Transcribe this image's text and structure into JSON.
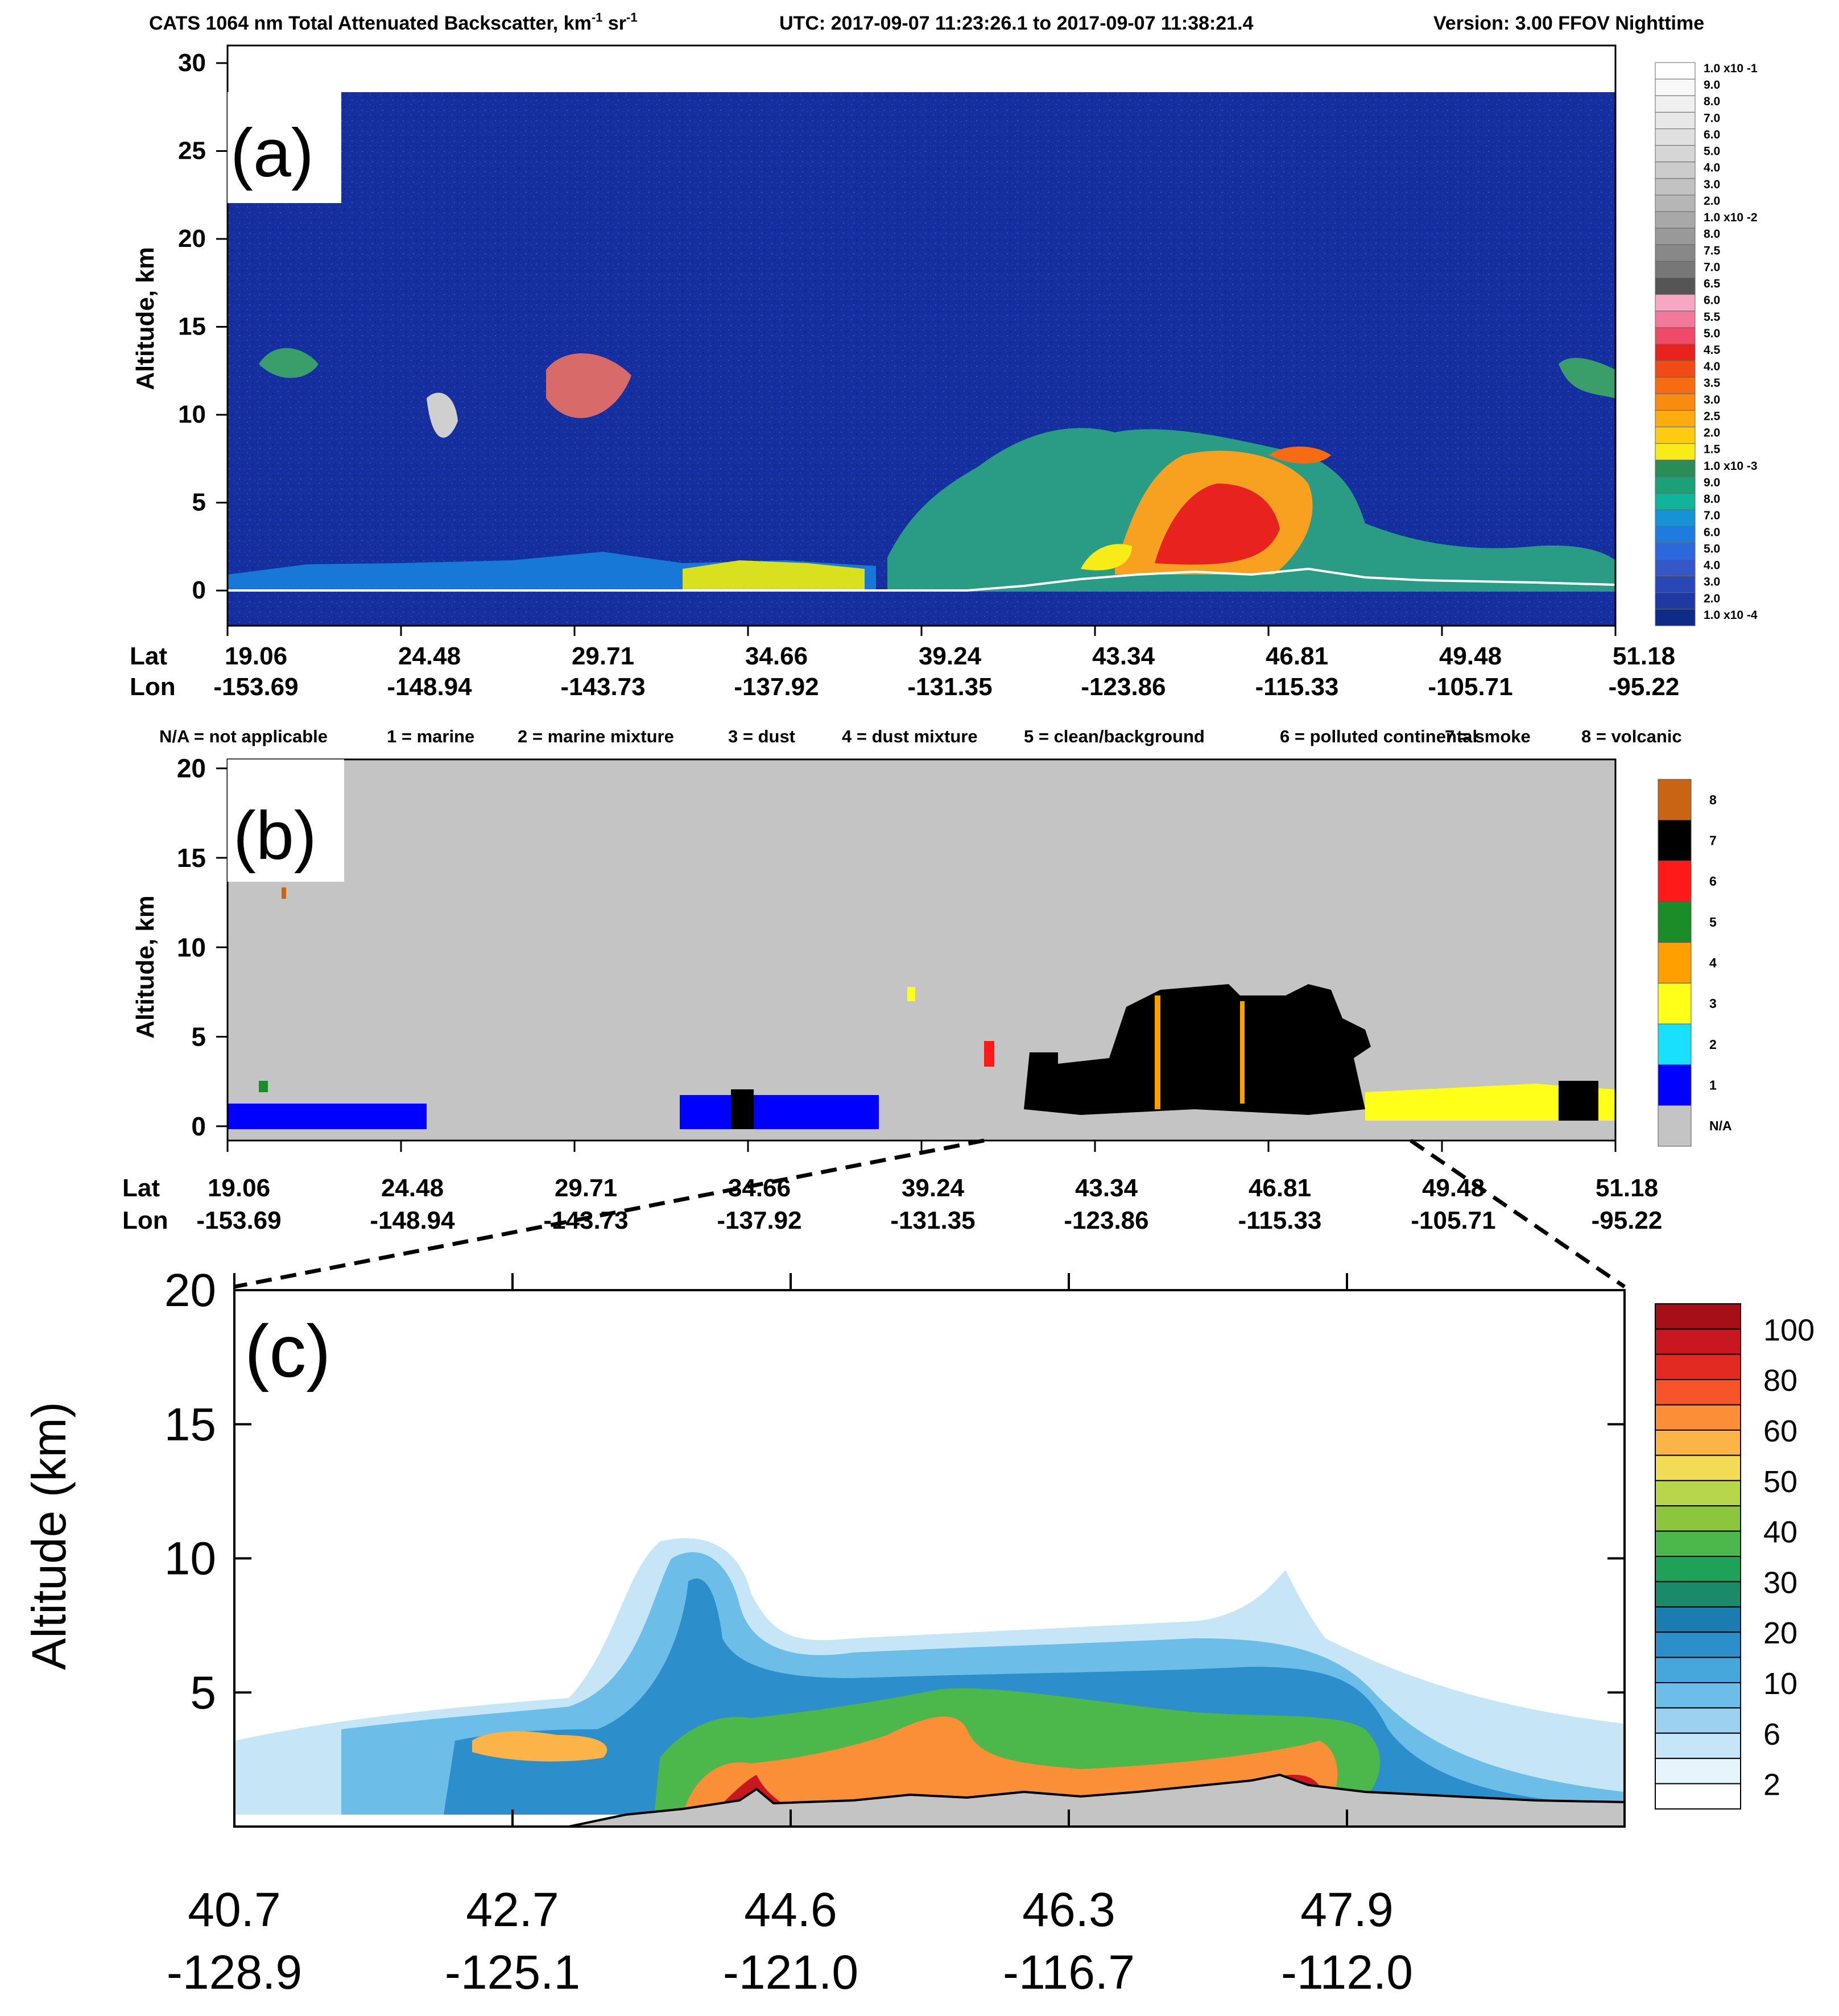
{
  "chart_data": [
    {
      "panel": "a",
      "type": "heatmap",
      "panel_label": "(a)",
      "title": "CATS  1064 nm Total Attenuated Backscatter, km",
      "title_sup1": "-1",
      "title_unit2": " sr",
      "title_sup2": "-1",
      "utc_label": "UTC:  2017-09-07 11:23:26.1  to  2017-09-07 11:38:21.4",
      "version_label": "Version: 3.00  FFOV  Nighttime",
      "ylabel": "Altitude, km",
      "ylim": [
        -2,
        31
      ],
      "yticks": [
        "0",
        "5",
        "10",
        "15",
        "20",
        "25",
        "30"
      ],
      "ytick_values": [
        0,
        5,
        10,
        15,
        20,
        25,
        30
      ],
      "lat_label": "Lat",
      "lon_label": "Lon",
      "lat_ticks": [
        "19.06",
        "24.48",
        "29.71",
        "34.66",
        "39.24",
        "43.34",
        "46.81",
        "49.48",
        "51.18"
      ],
      "lon_ticks": [
        "-153.69",
        "-148.94",
        "-143.73",
        "-137.92",
        "-131.35",
        "-123.86",
        "-115.33",
        "-105.71",
        "-95.22"
      ],
      "colorbar": {
        "labels": [
          "1.0 x10 -1",
          "9.0",
          "8.0",
          "7.0",
          "6.0",
          "5.0",
          "4.0",
          "3.0",
          "2.0",
          "1.0 x10 -2",
          "8.0",
          "7.5",
          "7.0",
          "6.5",
          "6.0",
          "5.5",
          "5.0",
          "4.5",
          "4.0",
          "3.5",
          "3.0",
          "2.5",
          "2.0",
          "1.5",
          "1.0 x10 -3",
          "9.0",
          "8.0",
          "7.0",
          "6.0",
          "5.0",
          "4.0",
          "3.0",
          "2.0",
          "1.0 x10 -4"
        ],
        "colors": [
          "#ffffff",
          "#f8f8f8",
          "#f0f0f0",
          "#e8e8e8",
          "#e0e0e0",
          "#d6d6d6",
          "#cccccc",
          "#c2c2c2",
          "#b6b6b6",
          "#a8a8a8",
          "#999999",
          "#888888",
          "#777777",
          "#555555",
          "#f7a7c2",
          "#f4789a",
          "#f04a6a",
          "#e8221e",
          "#f24a16",
          "#f76b12",
          "#fa8a10",
          "#fcac0e",
          "#fdcc10",
          "#f7ec18",
          "#2a8c57",
          "#1ba079",
          "#10b49a",
          "#1692d6",
          "#1e7ce0",
          "#2a68db",
          "#3458c9",
          "#2a48b5",
          "#1c3aa1",
          "#0e2b88"
        ]
      }
    },
    {
      "panel": "b",
      "type": "heatmap",
      "panel_label": "(b)",
      "legend_text": [
        "N/A = not applicable",
        "1 = marine",
        "2 = marine mixture",
        "3 = dust",
        "4 = dust mixture",
        "5 = clean/background",
        "6 = polluted continental",
        "7 = smoke",
        "8 = volcanic"
      ],
      "ylabel": "Altitude, km",
      "ylim": [
        -0.8,
        20.5
      ],
      "yticks": [
        "0",
        "5",
        "10",
        "15",
        "20"
      ],
      "ytick_values": [
        0,
        5,
        10,
        15,
        20
      ],
      "lat_label": "Lat",
      "lon_label": "Lon",
      "lat_ticks": [
        "19.06",
        "24.48",
        "29.71",
        "34.66",
        "39.24",
        "43.34",
        "46.81",
        "49.48",
        "51.18"
      ],
      "lon_ticks": [
        "-153.69",
        "-148.94",
        "-143.73",
        "-137.92",
        "-131.35",
        "-123.86",
        "-115.33",
        "-105.71",
        "-95.22"
      ],
      "categories": [
        {
          "label": "8",
          "color": "#c86414"
        },
        {
          "label": "7",
          "color": "#000000"
        },
        {
          "label": "6",
          "color": "#ff1a1a"
        },
        {
          "label": "5",
          "color": "#1a8c28"
        },
        {
          "label": "4",
          "color": "#ffa000"
        },
        {
          "label": "3",
          "color": "#ffff1a"
        },
        {
          "label": "2",
          "color": "#1ae0ff"
        },
        {
          "label": "1",
          "color": "#0000ff"
        },
        {
          "label": "N/A",
          "color": "#c4c4c4"
        }
      ]
    },
    {
      "panel": "c",
      "type": "area",
      "panel_label": "(c)",
      "ylabel": "Altitude (km)",
      "ylim": [
        0,
        20
      ],
      "yticks": [
        "5",
        "10",
        "15",
        "20"
      ],
      "ytick_values": [
        5,
        10,
        15,
        20
      ],
      "x_ticks_lat": [
        "40.7",
        "42.7",
        "44.6",
        "46.3",
        "47.9"
      ],
      "x_ticks_lon": [
        "-128.9",
        "-125.1",
        "-121.0",
        "-116.7",
        "-112.0"
      ],
      "colorbar": {
        "labels": [
          "100",
          "80",
          "60",
          "50",
          "40",
          "30",
          "20",
          "10",
          "6",
          "2"
        ],
        "colors": [
          "#a50f15",
          "#c8171f",
          "#e32a22",
          "#f7542a",
          "#fb8f38",
          "#fcb348",
          "#f2dc56",
          "#b8d64a",
          "#8cc63f",
          "#4cb74a",
          "#1fa15a",
          "#1a8a6a",
          "#1c7bb0",
          "#2c8fcc",
          "#45a7dc",
          "#6cbde7",
          "#9cd2f0",
          "#c6e6f7",
          "#e6f4fb",
          "#ffffff"
        ]
      }
    }
  ]
}
